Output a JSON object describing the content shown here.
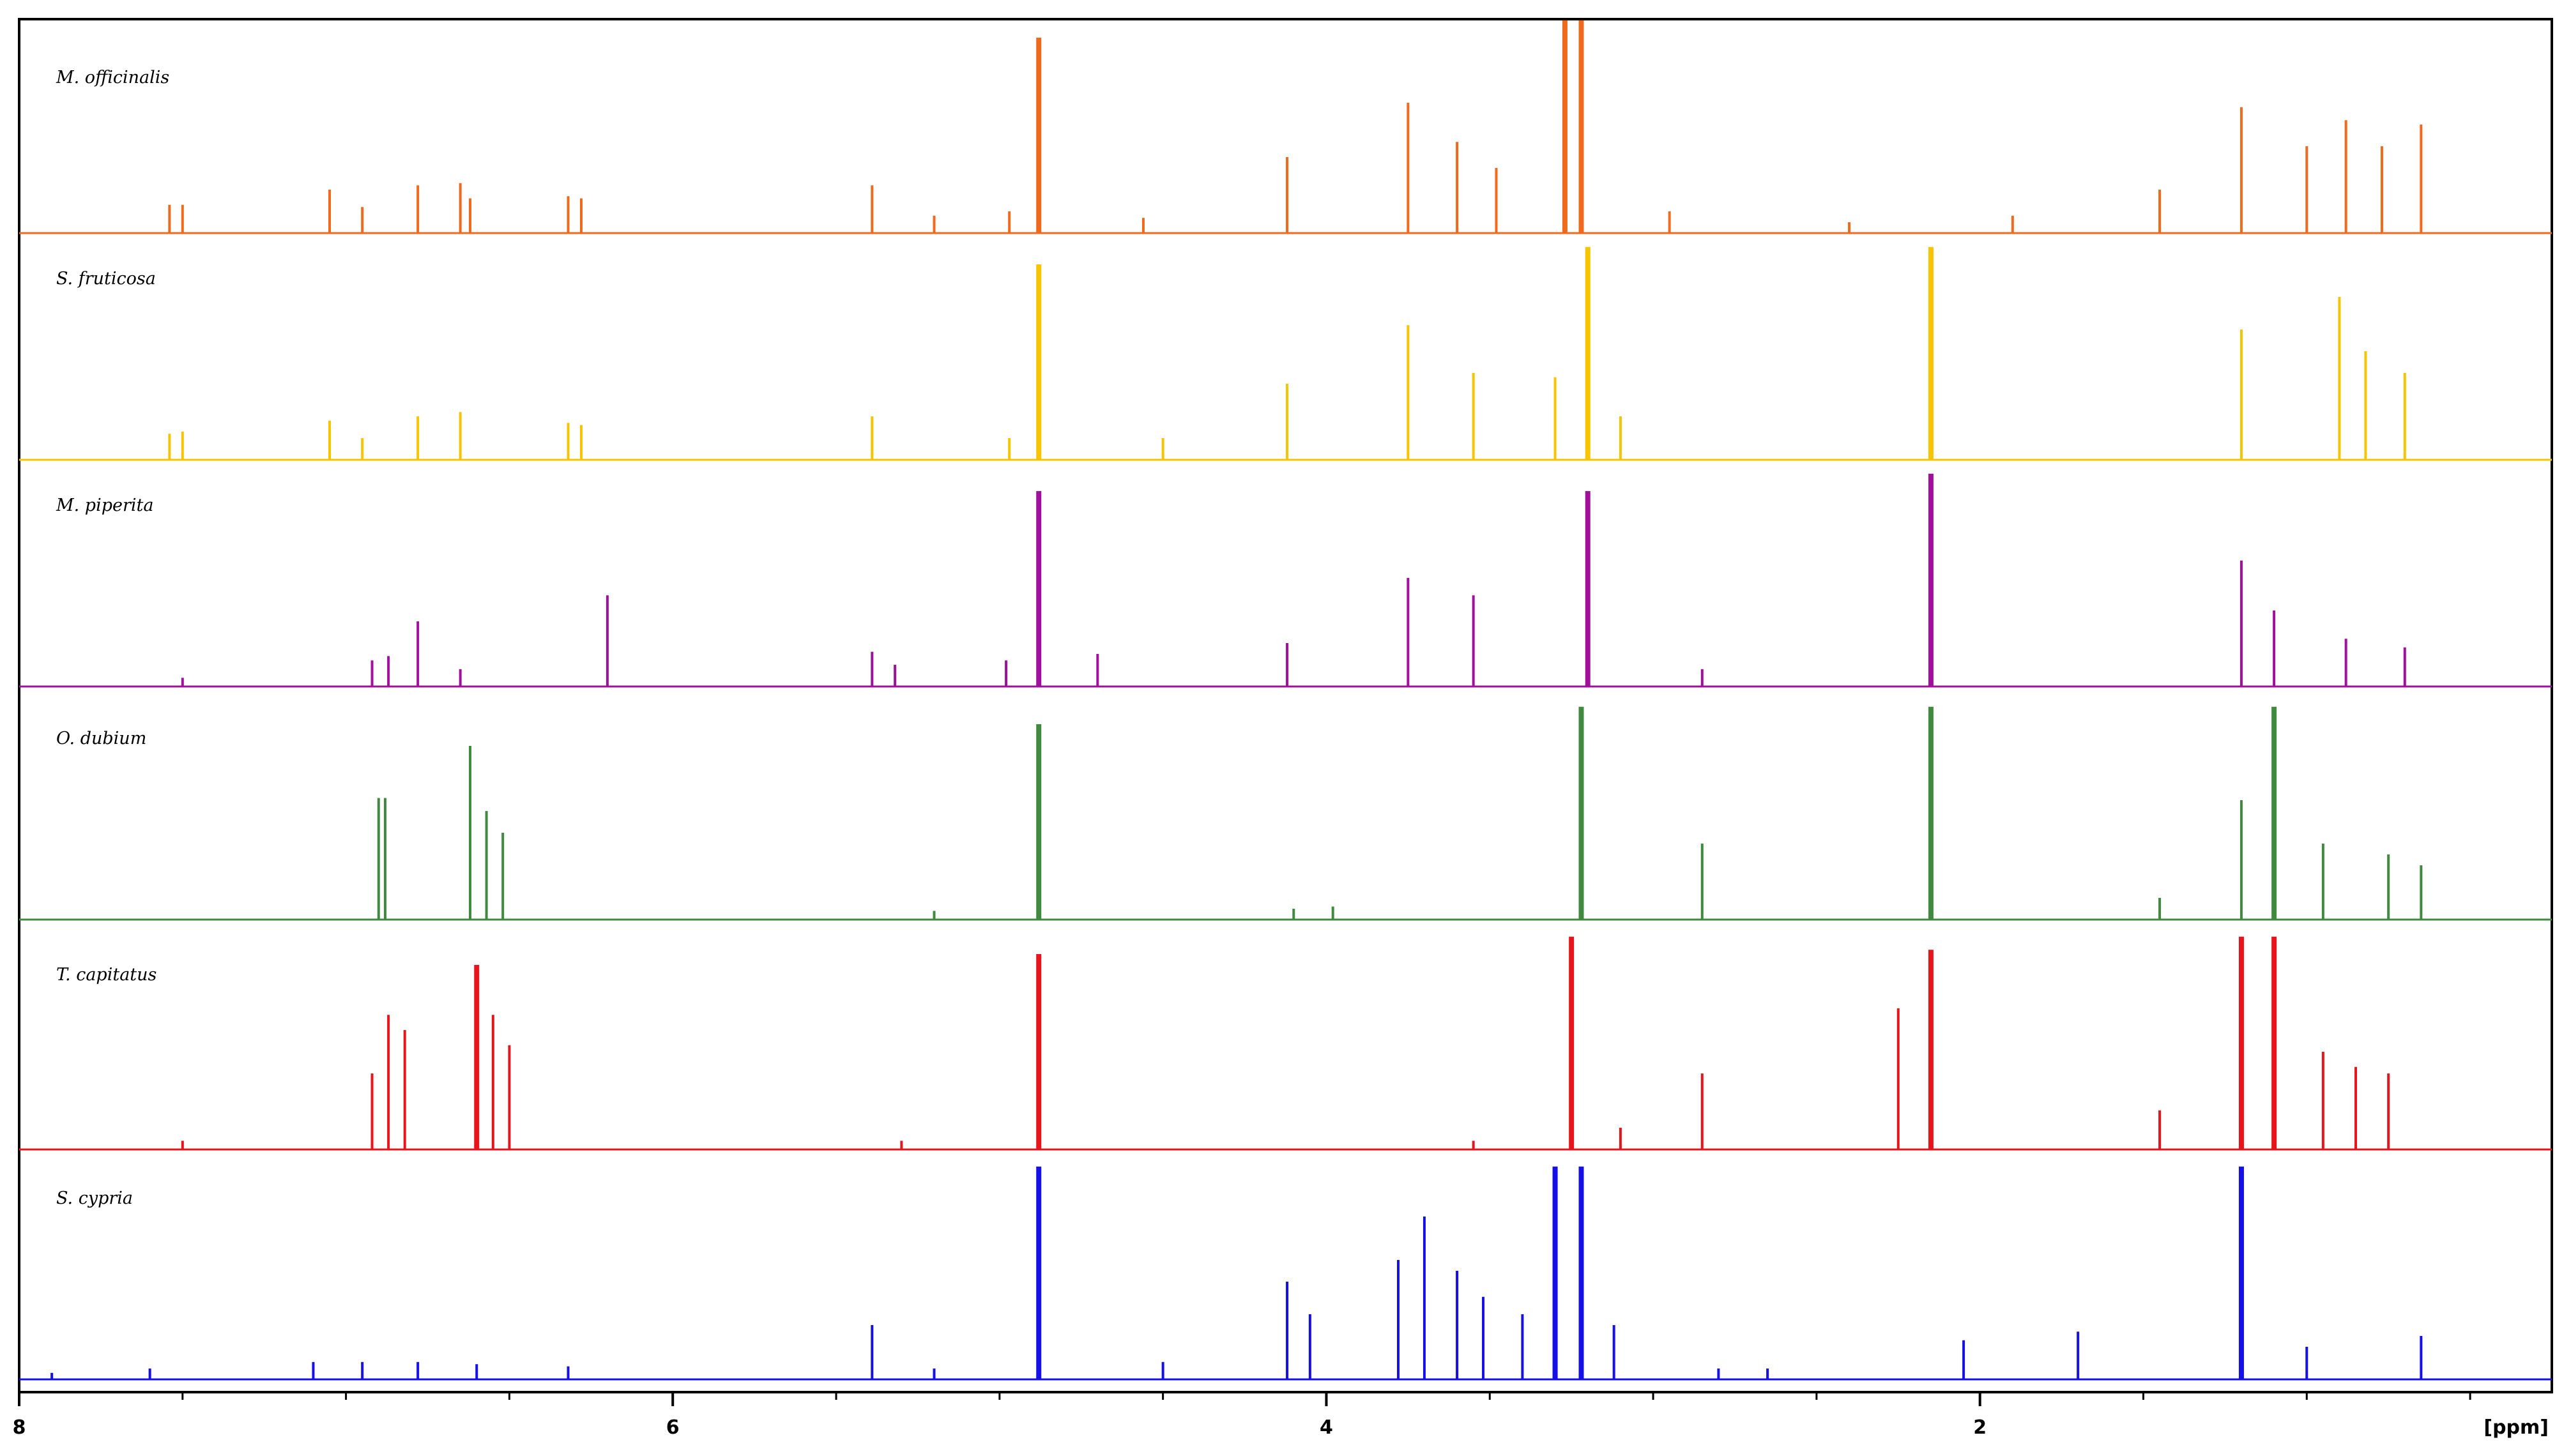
{
  "chart_data": {
    "type": "line",
    "title": "",
    "xlabel": "[ppm]",
    "ylabel": "",
    "xlim": [
      8.0,
      0.25
    ],
    "x_reversed": true,
    "x_ticks": [
      "8",
      "6",
      "4",
      "2"
    ],
    "grid": false,
    "legend": "none (each trace labelled at its upper left)",
    "colors": {
      "M. officinalis": "#f06a1e",
      "S. fruticosa": "#f6c400",
      "M. piperita": "#a0109c",
      "O. dubium": "#3f8a3f",
      "T. capitatus": "#e8141b",
      "S. cypria": "#1510e8"
    },
    "series": [
      {
        "name": "M. officinalis",
        "peaks": [
          {
            "ppm": 7.5,
            "h": 0.13
          },
          {
            "ppm": 7.54,
            "h": 0.13
          },
          {
            "ppm": 7.05,
            "h": 0.2
          },
          {
            "ppm": 6.95,
            "h": 0.12
          },
          {
            "ppm": 6.78,
            "h": 0.22
          },
          {
            "ppm": 6.65,
            "h": 0.23
          },
          {
            "ppm": 6.62,
            "h": 0.16
          },
          {
            "ppm": 6.32,
            "h": 0.17
          },
          {
            "ppm": 6.28,
            "h": 0.16
          },
          {
            "ppm": 5.39,
            "h": 0.22
          },
          {
            "ppm": 5.2,
            "h": 0.08
          },
          {
            "ppm": 4.97,
            "h": 0.1
          },
          {
            "ppm": 4.88,
            "h": 0.9
          },
          {
            "ppm": 4.56,
            "h": 0.07
          },
          {
            "ppm": 4.12,
            "h": 0.35
          },
          {
            "ppm": 3.75,
            "h": 0.6
          },
          {
            "ppm": 3.6,
            "h": 0.42
          },
          {
            "ppm": 3.48,
            "h": 0.3
          },
          {
            "ppm": 3.27,
            "h": 0.98
          },
          {
            "ppm": 3.22,
            "h": 0.98
          },
          {
            "ppm": 2.95,
            "h": 0.1
          },
          {
            "ppm": 2.4,
            "h": 0.05
          },
          {
            "ppm": 1.9,
            "h": 0.08
          },
          {
            "ppm": 1.45,
            "h": 0.2
          },
          {
            "ppm": 1.2,
            "h": 0.58
          },
          {
            "ppm": 1.0,
            "h": 0.4
          },
          {
            "ppm": 0.88,
            "h": 0.52
          },
          {
            "ppm": 0.77,
            "h": 0.4
          },
          {
            "ppm": 0.65,
            "h": 0.5
          }
        ]
      },
      {
        "name": "S. fruticosa",
        "peaks": [
          {
            "ppm": 7.5,
            "h": 0.13
          },
          {
            "ppm": 7.54,
            "h": 0.12
          },
          {
            "ppm": 7.05,
            "h": 0.18
          },
          {
            "ppm": 6.95,
            "h": 0.1
          },
          {
            "ppm": 6.78,
            "h": 0.2
          },
          {
            "ppm": 6.65,
            "h": 0.22
          },
          {
            "ppm": 6.32,
            "h": 0.17
          },
          {
            "ppm": 6.28,
            "h": 0.16
          },
          {
            "ppm": 5.39,
            "h": 0.2
          },
          {
            "ppm": 4.97,
            "h": 0.1
          },
          {
            "ppm": 4.88,
            "h": 0.9
          },
          {
            "ppm": 4.5,
            "h": 0.1
          },
          {
            "ppm": 4.12,
            "h": 0.35
          },
          {
            "ppm": 3.75,
            "h": 0.62
          },
          {
            "ppm": 3.55,
            "h": 0.4
          },
          {
            "ppm": 3.3,
            "h": 0.38
          },
          {
            "ppm": 3.2,
            "h": 0.98
          },
          {
            "ppm": 3.1,
            "h": 0.2
          },
          {
            "ppm": 2.15,
            "h": 0.98
          },
          {
            "ppm": 1.2,
            "h": 0.6
          },
          {
            "ppm": 0.9,
            "h": 0.75
          },
          {
            "ppm": 0.82,
            "h": 0.5
          },
          {
            "ppm": 0.7,
            "h": 0.4
          }
        ]
      },
      {
        "name": "M. piperita",
        "peaks": [
          {
            "ppm": 7.5,
            "h": 0.04
          },
          {
            "ppm": 6.92,
            "h": 0.12
          },
          {
            "ppm": 6.87,
            "h": 0.14
          },
          {
            "ppm": 6.78,
            "h": 0.3
          },
          {
            "ppm": 6.65,
            "h": 0.08
          },
          {
            "ppm": 6.2,
            "h": 0.42
          },
          {
            "ppm": 5.39,
            "h": 0.16
          },
          {
            "ppm": 5.32,
            "h": 0.1
          },
          {
            "ppm": 4.98,
            "h": 0.12
          },
          {
            "ppm": 4.88,
            "h": 0.9
          },
          {
            "ppm": 4.7,
            "h": 0.15
          },
          {
            "ppm": 4.12,
            "h": 0.2
          },
          {
            "ppm": 3.75,
            "h": 0.5
          },
          {
            "ppm": 3.55,
            "h": 0.42
          },
          {
            "ppm": 3.2,
            "h": 0.9
          },
          {
            "ppm": 2.85,
            "h": 0.08
          },
          {
            "ppm": 2.15,
            "h": 0.98
          },
          {
            "ppm": 1.2,
            "h": 0.58
          },
          {
            "ppm": 1.1,
            "h": 0.35
          },
          {
            "ppm": 0.88,
            "h": 0.22
          },
          {
            "ppm": 0.7,
            "h": 0.18
          }
        ]
      },
      {
        "name": "O. dubium",
        "peaks": [
          {
            "ppm": 6.9,
            "h": 0.56
          },
          {
            "ppm": 6.88,
            "h": 0.56
          },
          {
            "ppm": 6.62,
            "h": 0.8
          },
          {
            "ppm": 6.57,
            "h": 0.5
          },
          {
            "ppm": 6.52,
            "h": 0.4
          },
          {
            "ppm": 5.2,
            "h": 0.04
          },
          {
            "ppm": 4.88,
            "h": 0.9
          },
          {
            "ppm": 4.1,
            "h": 0.05
          },
          {
            "ppm": 3.98,
            "h": 0.06
          },
          {
            "ppm": 3.22,
            "h": 0.98
          },
          {
            "ppm": 2.85,
            "h": 0.35
          },
          {
            "ppm": 2.15,
            "h": 0.98
          },
          {
            "ppm": 1.45,
            "h": 0.1
          },
          {
            "ppm": 1.2,
            "h": 0.55
          },
          {
            "ppm": 1.1,
            "h": 0.98
          },
          {
            "ppm": 0.95,
            "h": 0.35
          },
          {
            "ppm": 0.75,
            "h": 0.3
          },
          {
            "ppm": 0.65,
            "h": 0.25
          }
        ]
      },
      {
        "name": "T. capitatus",
        "peaks": [
          {
            "ppm": 7.5,
            "h": 0.04
          },
          {
            "ppm": 6.92,
            "h": 0.35
          },
          {
            "ppm": 6.87,
            "h": 0.62
          },
          {
            "ppm": 6.82,
            "h": 0.55
          },
          {
            "ppm": 6.6,
            "h": 0.85
          },
          {
            "ppm": 6.55,
            "h": 0.62
          },
          {
            "ppm": 6.5,
            "h": 0.48
          },
          {
            "ppm": 5.3,
            "h": 0.04
          },
          {
            "ppm": 4.88,
            "h": 0.9
          },
          {
            "ppm": 3.55,
            "h": 0.04
          },
          {
            "ppm": 3.25,
            "h": 0.98
          },
          {
            "ppm": 3.1,
            "h": 0.1
          },
          {
            "ppm": 2.85,
            "h": 0.35
          },
          {
            "ppm": 2.25,
            "h": 0.65
          },
          {
            "ppm": 2.15,
            "h": 0.92
          },
          {
            "ppm": 1.45,
            "h": 0.18
          },
          {
            "ppm": 1.2,
            "h": 0.98
          },
          {
            "ppm": 1.1,
            "h": 0.98
          },
          {
            "ppm": 0.95,
            "h": 0.45
          },
          {
            "ppm": 0.85,
            "h": 0.38
          },
          {
            "ppm": 0.75,
            "h": 0.35
          }
        ]
      },
      {
        "name": "S. cypria",
        "peaks": [
          {
            "ppm": 7.9,
            "h": 0.03
          },
          {
            "ppm": 7.6,
            "h": 0.05
          },
          {
            "ppm": 7.1,
            "h": 0.08
          },
          {
            "ppm": 6.95,
            "h": 0.08
          },
          {
            "ppm": 6.78,
            "h": 0.08
          },
          {
            "ppm": 6.6,
            "h": 0.07
          },
          {
            "ppm": 6.32,
            "h": 0.06
          },
          {
            "ppm": 5.39,
            "h": 0.25
          },
          {
            "ppm": 5.2,
            "h": 0.05
          },
          {
            "ppm": 4.88,
            "h": 0.98
          },
          {
            "ppm": 4.5,
            "h": 0.08
          },
          {
            "ppm": 4.12,
            "h": 0.45
          },
          {
            "ppm": 4.05,
            "h": 0.3
          },
          {
            "ppm": 3.78,
            "h": 0.55
          },
          {
            "ppm": 3.7,
            "h": 0.75
          },
          {
            "ppm": 3.6,
            "h": 0.5
          },
          {
            "ppm": 3.52,
            "h": 0.38
          },
          {
            "ppm": 3.4,
            "h": 0.3
          },
          {
            "ppm": 3.3,
            "h": 0.98
          },
          {
            "ppm": 3.22,
            "h": 0.98
          },
          {
            "ppm": 3.12,
            "h": 0.25
          },
          {
            "ppm": 2.8,
            "h": 0.05
          },
          {
            "ppm": 2.65,
            "h": 0.05
          },
          {
            "ppm": 2.05,
            "h": 0.18
          },
          {
            "ppm": 1.7,
            "h": 0.22
          },
          {
            "ppm": 1.2,
            "h": 0.98
          },
          {
            "ppm": 1.0,
            "h": 0.15
          },
          {
            "ppm": 0.65,
            "h": 0.2
          }
        ]
      }
    ]
  }
}
